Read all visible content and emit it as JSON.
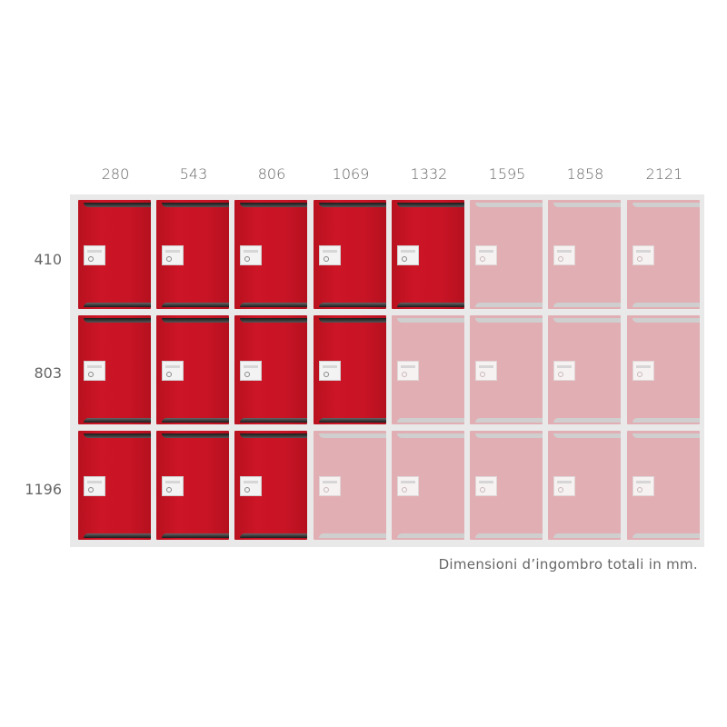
{
  "column_widths_mm": [
    "280",
    "543",
    "806",
    "1069",
    "1332",
    "1595",
    "1858",
    "2121"
  ],
  "row_heights_mm": [
    "410",
    "803",
    "1196"
  ],
  "active_columns_per_row": [
    5,
    4,
    3
  ],
  "colors": {
    "active_door": "#c81425",
    "inactive_door": "#e1aeb3",
    "frame": "#e9e9e9",
    "label_text": "#666666"
  },
  "icons": {
    "lock": "key-lock-icon"
  },
  "caption": "Dimensioni d’ingombro totali in mm."
}
